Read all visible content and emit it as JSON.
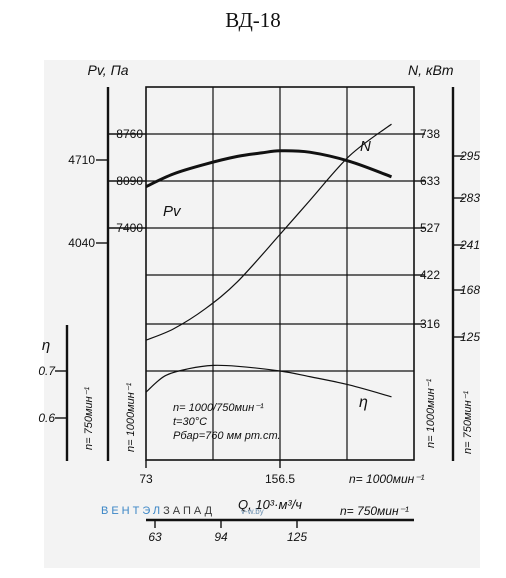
{
  "title": "ВД-18",
  "watermark": {
    "part1": "ВЕНТЭЛ",
    "part2": "ЗАПАД",
    "part3": "v-w.by"
  },
  "chart_data": {
    "type": "line",
    "title": "ВД-18",
    "xlabel": "Q, 10³·м³/ч",
    "x_rpm_1000": {
      "label": "n= 1000мин⁻¹",
      "range": [
        73,
        240
      ],
      "ticks": [
        73,
        156.5
      ]
    },
    "x_rpm_750": {
      "label": "n= 750мин⁻¹",
      "range": [
        63,
        188
      ],
      "ticks": [
        63,
        94,
        125
      ]
    },
    "y_pv_1000": {
      "label": "Pv, Па",
      "ticks": [
        7400,
        8090,
        8760
      ]
    },
    "y_pv_750": {
      "ticks": [
        4040,
        4710
      ]
    },
    "y_n_1000": {
      "label": "N, кВт",
      "ticks": [
        316,
        422,
        527,
        633,
        738
      ]
    },
    "y_n_750": {
      "ticks": [
        125,
        168,
        241,
        283,
        295
      ]
    },
    "y_eta": {
      "label": "η",
      "ticks": [
        0.6,
        0.7
      ]
    },
    "side_label_left": "n= 1000мин⁻¹",
    "side_label_left_outer": "n= 750мин⁻¹",
    "side_label_right": "n= 1000мин⁻¹",
    "side_label_right_outer": "n= 750мин⁻¹",
    "annotations": [
      "n= 1000/750мин⁻¹",
      "t=30°C",
      "Рбар=760 мм рт.ст."
    ],
    "series": [
      {
        "name": "Pv",
        "axis": "y_pv_1000",
        "x": [
          73,
          90,
          110,
          130,
          145,
          156.5,
          175,
          200,
          226
        ],
        "y": [
          8010,
          8190,
          8330,
          8440,
          8490,
          8520,
          8500,
          8370,
          8150
        ]
      },
      {
        "name": "N",
        "axis": "y_n_1000",
        "x": [
          73,
          90,
          110,
          130,
          156.5,
          175,
          200,
          226
        ],
        "y": [
          280,
          305,
          350,
          410,
          515,
          590,
          690,
          760
        ]
      },
      {
        "name": "η",
        "axis": "y_eta",
        "x": [
          73,
          85,
          100,
          115,
          130,
          156.5,
          175,
          200,
          226
        ],
        "y": [
          0.655,
          0.69,
          0.705,
          0.712,
          0.71,
          0.7,
          0.688,
          0.67,
          0.645
        ]
      }
    ]
  }
}
